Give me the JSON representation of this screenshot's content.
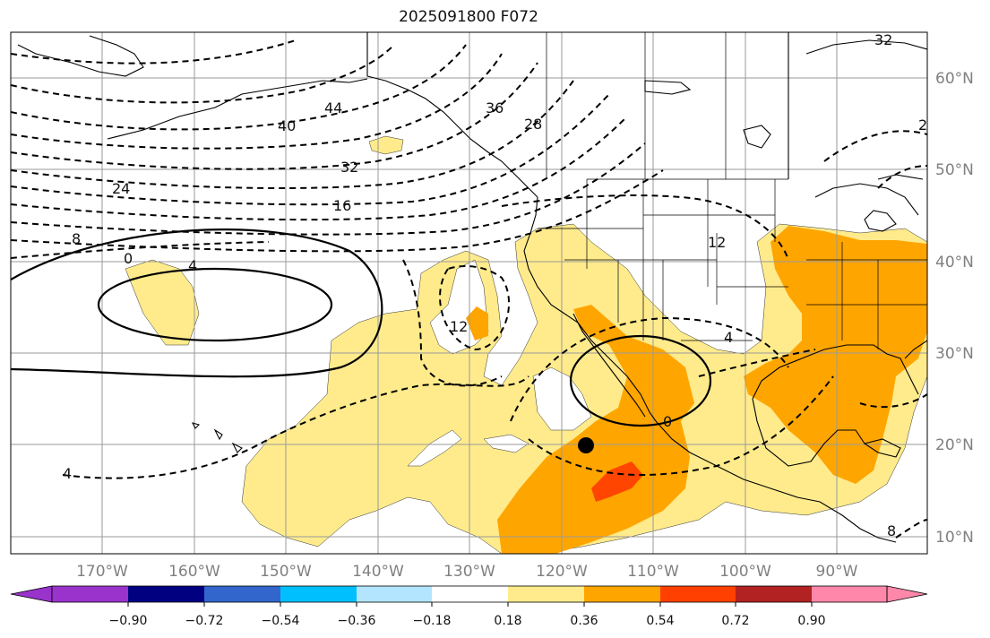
{
  "title": "2025091800 F072",
  "map": {
    "lon_labels": [
      "170°W",
      "160°W",
      "150°W",
      "140°W",
      "130°W",
      "120°W",
      "110°W",
      "100°W",
      "90°W"
    ],
    "lat_labels": [
      "60°N",
      "50°N",
      "40°N",
      "30°N",
      "20°N",
      "10°N"
    ],
    "grid": true,
    "marker": {
      "lon": -117.0,
      "lat": 20.0
    }
  },
  "contour_labels": [
    "44",
    "40",
    "36",
    "28",
    "32",
    "24",
    "16",
    "8",
    "0",
    "4",
    "12",
    "12",
    "4",
    "0",
    "4",
    "32",
    "2",
    "8"
  ],
  "colorbar": {
    "tick_labels": [
      "−0.90",
      "−0.72",
      "−0.54",
      "−0.36",
      "−0.18",
      "0.18",
      "0.36",
      "0.54",
      "0.72",
      "0.90"
    ],
    "colors": [
      "#9933cc",
      "#000080",
      "#3366cc",
      "#00bfff",
      "#b3e5ff",
      "#ffffff",
      "#ffeb8c",
      "#ffa500",
      "#ff4000",
      "#b22222",
      "#ff88aa"
    ]
  },
  "fill_colors": {
    "light": "#ffeb8c",
    "orange": "#ffa500",
    "red": "#ff4500"
  }
}
